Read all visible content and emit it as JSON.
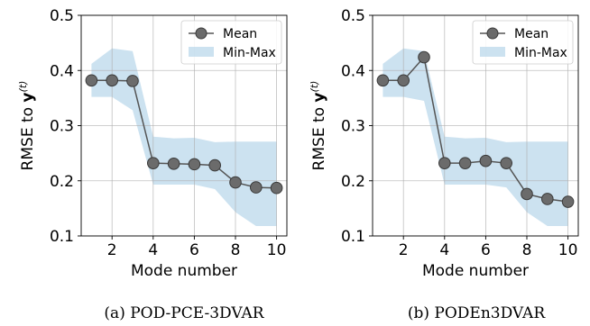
{
  "chart_data": [
    {
      "type": "line",
      "caption": "(a) POD-PCE-3DVAR",
      "xlabel": "Mode number",
      "ylabel_prefix": "RMSE to ",
      "ylabel_var": "y",
      "ylabel_sup": "(t)",
      "xlim": [
        0.5,
        10.5
      ],
      "ylim": [
        0.1,
        0.5
      ],
      "xticks": [
        2,
        4,
        6,
        8,
        10
      ],
      "yticks": [
        0.1,
        0.2,
        0.3,
        0.4,
        0.5
      ],
      "xtick_labels": [
        "2",
        "4",
        "6",
        "8",
        "10"
      ],
      "ytick_labels": [
        "0.1",
        "0.2",
        "0.3",
        "0.4",
        "0.5"
      ],
      "grid": true,
      "legend_position": "top-right",
      "x": [
        1,
        2,
        3,
        4,
        5,
        6,
        7,
        8,
        9,
        10
      ],
      "series": [
        {
          "name": "Mean",
          "kind": "line-marker",
          "color": "#555555",
          "values": [
            0.382,
            0.382,
            0.381,
            0.232,
            0.231,
            0.23,
            0.228,
            0.197,
            0.188,
            0.187
          ]
        },
        {
          "name": "Min-Max",
          "kind": "band",
          "color": "#b9d7ea",
          "lower": [
            0.352,
            0.352,
            0.328,
            0.193,
            0.193,
            0.193,
            0.185,
            0.143,
            0.118,
            0.118
          ],
          "upper": [
            0.412,
            0.44,
            0.435,
            0.28,
            0.277,
            0.278,
            0.27,
            0.271,
            0.271,
            0.271
          ]
        }
      ]
    },
    {
      "type": "line",
      "caption": "(b) PODEn3DVAR",
      "xlabel": "Mode number",
      "ylabel_prefix": "RMSE to ",
      "ylabel_var": "y",
      "ylabel_sup": "(t)",
      "xlim": [
        0.5,
        10.5
      ],
      "ylim": [
        0.1,
        0.5
      ],
      "xticks": [
        2,
        4,
        6,
        8,
        10
      ],
      "yticks": [
        0.1,
        0.2,
        0.3,
        0.4,
        0.5
      ],
      "xtick_labels": [
        "2",
        "4",
        "6",
        "8",
        "10"
      ],
      "ytick_labels": [
        "0.1",
        "0.2",
        "0.3",
        "0.4",
        "0.5"
      ],
      "grid": true,
      "legend_position": "top-right",
      "x": [
        1,
        2,
        3,
        4,
        5,
        6,
        7,
        8,
        9,
        10
      ],
      "series": [
        {
          "name": "Mean",
          "kind": "line-marker",
          "color": "#555555",
          "values": [
            0.382,
            0.382,
            0.424,
            0.232,
            0.232,
            0.236,
            0.232,
            0.176,
            0.167,
            0.162
          ]
        },
        {
          "name": "Min-Max",
          "kind": "band",
          "color": "#b9d7ea",
          "lower": [
            0.352,
            0.352,
            0.345,
            0.193,
            0.193,
            0.193,
            0.188,
            0.143,
            0.118,
            0.118
          ],
          "upper": [
            0.412,
            0.44,
            0.435,
            0.28,
            0.277,
            0.278,
            0.27,
            0.271,
            0.271,
            0.271
          ]
        }
      ]
    }
  ]
}
